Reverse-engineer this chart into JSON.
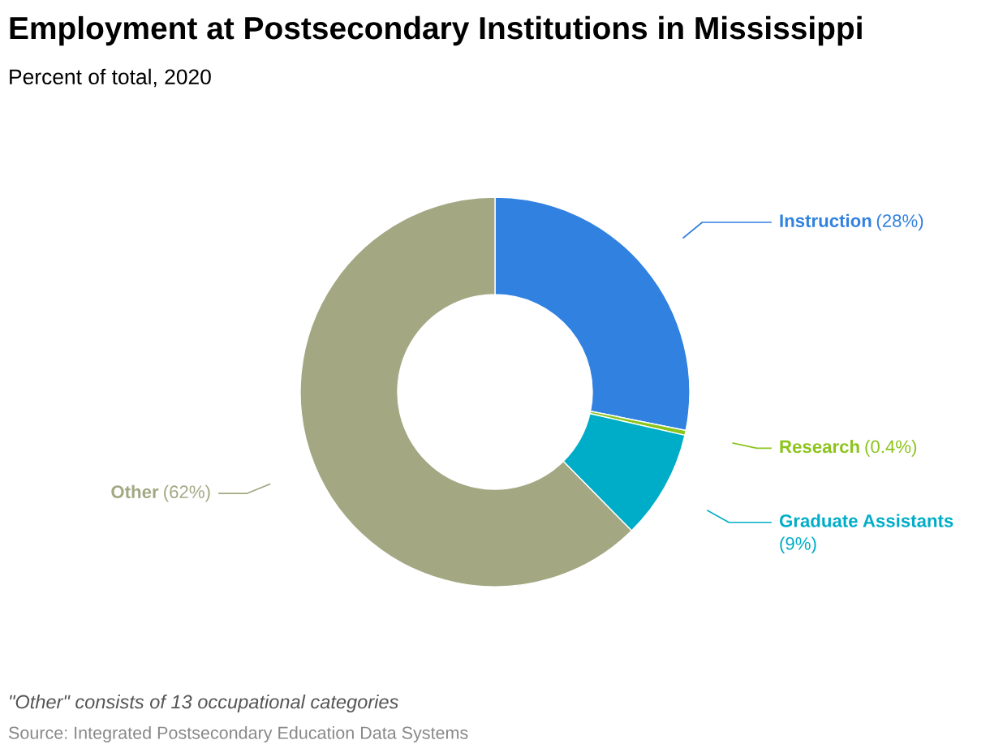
{
  "chart_data": {
    "type": "donut",
    "title": "Employment at Postsecondary Institutions in Mississippi",
    "subtitle": "Percent of total, 2020",
    "categories": [
      "Instruction",
      "Research",
      "Graduate Assistants",
      "Other"
    ],
    "values": [
      28,
      0.4,
      9,
      62
    ],
    "value_labels": [
      "(28%)",
      "(0.4%)",
      "(9%)",
      "(62%)"
    ],
    "colors": [
      "#3181e0",
      "#8cc41c",
      "#00adc8",
      "#a3a883"
    ],
    "legend": "right",
    "annotations": [
      "\"Other\" consists of 13 occupational categories",
      "Source: Integrated Postsecondary Education Data Systems"
    ]
  }
}
